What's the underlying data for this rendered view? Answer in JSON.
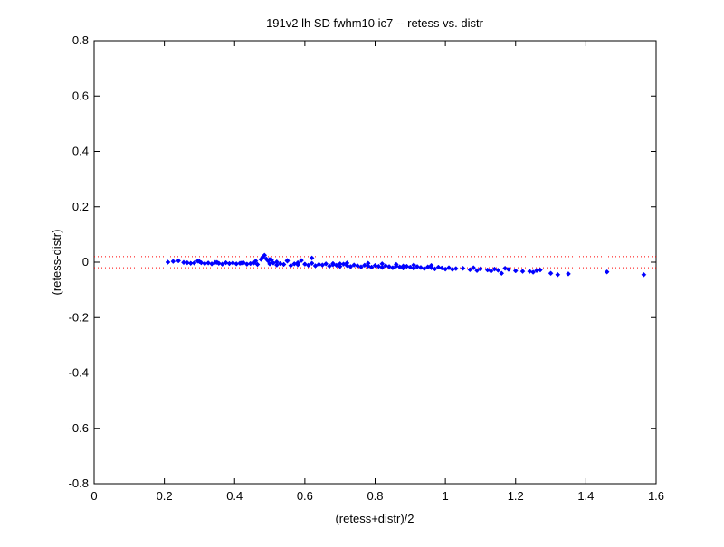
{
  "chart_data": {
    "type": "scatter",
    "title": "191v2 lh SD fwhm10 ic7 -- retess vs. distr",
    "xlabel": "(retess+distr)/2",
    "ylabel": "(retess-distr)",
    "xlim": [
      0,
      1.6
    ],
    "ylim": [
      -0.8,
      0.8
    ],
    "xticks": [
      "0",
      "0.2",
      "0.4",
      "0.6",
      "0.8",
      "1",
      "1.2",
      "1.4",
      "1.6"
    ],
    "yticks": [
      "-0.8",
      "-0.6",
      "-0.4",
      "-0.2",
      "0",
      "0.2",
      "0.4",
      "0.6",
      "0.8"
    ],
    "grid": false,
    "reference_lines": [
      0.02,
      -0.02
    ],
    "colors": {
      "points": "#0000ff",
      "reference_lines": "#ff0000",
      "axes": "#000000"
    },
    "x": [
      0.21,
      0.225,
      0.24,
      0.255,
      0.265,
      0.275,
      0.285,
      0.295,
      0.305,
      0.315,
      0.325,
      0.335,
      0.345,
      0.355,
      0.365,
      0.375,
      0.385,
      0.395,
      0.405,
      0.415,
      0.425,
      0.435,
      0.445,
      0.455,
      0.465,
      0.475,
      0.48,
      0.485,
      0.49,
      0.495,
      0.5,
      0.505,
      0.51,
      0.52,
      0.53,
      0.54,
      0.55,
      0.56,
      0.57,
      0.58,
      0.59,
      0.6,
      0.61,
      0.62,
      0.63,
      0.64,
      0.65,
      0.66,
      0.67,
      0.68,
      0.69,
      0.7,
      0.71,
      0.72,
      0.73,
      0.74,
      0.75,
      0.76,
      0.77,
      0.78,
      0.79,
      0.8,
      0.81,
      0.82,
      0.83,
      0.84,
      0.85,
      0.86,
      0.87,
      0.88,
      0.89,
      0.9,
      0.91,
      0.92,
      0.93,
      0.94,
      0.95,
      0.96,
      0.97,
      0.98,
      0.99,
      1.0,
      1.01,
      1.02,
      1.03,
      1.05,
      1.07,
      1.09,
      1.1,
      1.12,
      1.13,
      1.14,
      1.15,
      1.16,
      1.17,
      1.18,
      1.2,
      1.22,
      1.25,
      1.26,
      1.27,
      1.3,
      1.32,
      1.35,
      1.46,
      1.565,
      0.3,
      0.35,
      0.42,
      0.46,
      0.52,
      0.58,
      0.62,
      0.68,
      0.72,
      0.78,
      0.82,
      0.86,
      0.91,
      0.96,
      0.5,
      0.55,
      0.7,
      0.88,
      1.08,
      1.24
    ],
    "y": [
      0.0,
      0.003,
      0.005,
      -0.001,
      -0.002,
      -0.004,
      -0.003,
      0.004,
      -0.002,
      -0.005,
      -0.003,
      -0.006,
      -0.001,
      -0.004,
      -0.007,
      -0.002,
      -0.005,
      -0.003,
      -0.006,
      -0.004,
      -0.002,
      -0.007,
      -0.005,
      -0.003,
      -0.008,
      0.01,
      0.018,
      0.025,
      0.012,
      0.005,
      -0.006,
      0.008,
      -0.003,
      -0.01,
      -0.005,
      -0.008,
      0.004,
      -0.012,
      -0.006,
      -0.009,
      0.006,
      -0.007,
      -0.011,
      -0.004,
      -0.013,
      -0.008,
      -0.01,
      -0.006,
      -0.014,
      -0.009,
      -0.011,
      -0.015,
      -0.007,
      -0.012,
      -0.016,
      -0.01,
      -0.013,
      -0.017,
      -0.011,
      -0.014,
      -0.018,
      -0.012,
      -0.015,
      -0.019,
      -0.013,
      -0.016,
      -0.02,
      -0.014,
      -0.017,
      -0.021,
      -0.015,
      -0.018,
      -0.022,
      -0.016,
      -0.019,
      -0.023,
      -0.017,
      -0.02,
      -0.024,
      -0.018,
      -0.021,
      -0.025,
      -0.02,
      -0.026,
      -0.023,
      -0.022,
      -0.027,
      -0.03,
      -0.024,
      -0.028,
      -0.032,
      -0.025,
      -0.029,
      -0.04,
      -0.022,
      -0.026,
      -0.031,
      -0.033,
      -0.036,
      -0.03,
      -0.028,
      -0.04,
      -0.045,
      -0.042,
      -0.035,
      -0.045,
      0.002,
      -0.001,
      -0.003,
      0.004,
      0.001,
      -0.002,
      0.015,
      -0.005,
      -0.003,
      -0.004,
      -0.006,
      -0.008,
      -0.01,
      -0.012,
      0.01,
      0.006,
      -0.006,
      -0.014,
      -0.02,
      -0.033
    ]
  }
}
